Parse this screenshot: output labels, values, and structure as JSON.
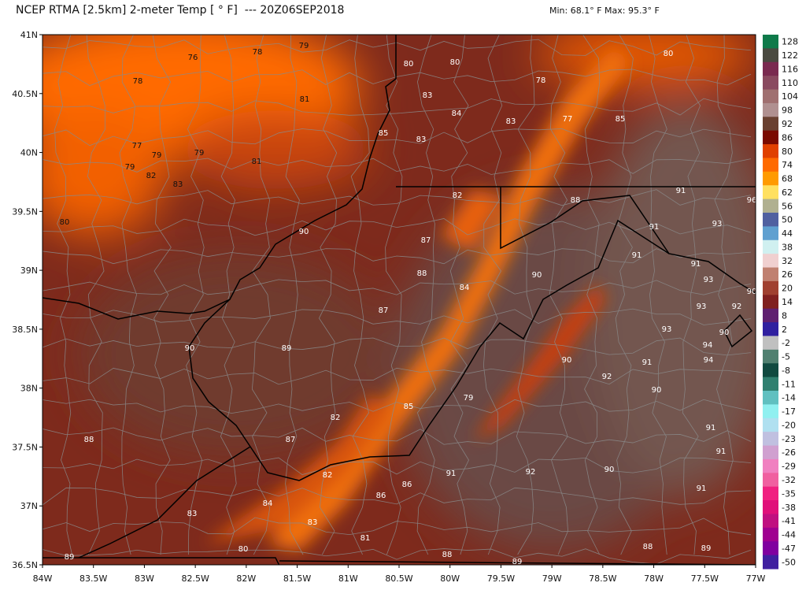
{
  "header": {
    "title": "NCEP RTMA [2.5km] 2-meter Temp [ ° F]  --- 20Z06SEP2018",
    "minmax": "Min: 68.1° F Max: 95.3° F"
  },
  "axes": {
    "lat_labels": [
      "41N",
      "40.5N",
      "40N",
      "39.5N",
      "39N",
      "38.5N",
      "38N",
      "37.5N",
      "37N",
      "36.5N"
    ],
    "lon_labels": [
      "84W",
      "83.5W",
      "83W",
      "82.5W",
      "82W",
      "81.5W",
      "81W",
      "80.5W",
      "80W",
      "79.5W",
      "79W",
      "78.5W",
      "78W",
      "77.5W",
      "77W"
    ]
  },
  "colorbar": {
    "labels": [
      "128",
      "122",
      "116",
      "110",
      "104",
      "98",
      "92",
      "86",
      "80",
      "74",
      "68",
      "62",
      "56",
      "50",
      "44",
      "38",
      "32",
      "26",
      "20",
      "14",
      "8",
      "2",
      "-2",
      "-5",
      "-8",
      "-11",
      "-14",
      "-17",
      "-20",
      "-23",
      "-26",
      "-29",
      "-32",
      "-35",
      "-38",
      "-41",
      "-44",
      "-47",
      "-50"
    ],
    "colors": [
      "#0f7a4a",
      "#4a4a40",
      "#7a2a50",
      "#8a4a60",
      "#a07070",
      "#b09090",
      "#6a4030",
      "#7a0a00",
      "#e04000",
      "#ff6a00",
      "#ff9a00",
      "#ffe060",
      "#b0b090",
      "#5060a0",
      "#60a0d0",
      "#d0f0f0",
      "#f0d0d0",
      "#c08070",
      "#a04030",
      "#802020",
      "#602070",
      "#3020a0",
      "#c0c0c0",
      "#508070",
      "#104a40",
      "#308070",
      "#60c0c0",
      "#90f0f0",
      "#b0e0f0",
      "#c0c0e0",
      "#d0a0d0",
      "#f080c0",
      "#f060a0",
      "#f02080",
      "#e0107a",
      "#c01080",
      "#a00090",
      "#8000a0",
      "#4020a0"
    ]
  },
  "temperature_labels": [
    "76",
    "78",
    "79",
    "78",
    "81",
    "85",
    "77",
    "79",
    "79",
    "81",
    "79",
    "82",
    "83",
    "80",
    "80",
    "80",
    "78",
    "80",
    "83",
    "84",
    "83",
    "77",
    "85",
    "83",
    "82",
    "88",
    "91",
    "96",
    "90",
    "87",
    "91",
    "93",
    "91",
    "91",
    "88",
    "90",
    "93",
    "84",
    "90",
    "93",
    "92",
    "87",
    "93",
    "90",
    "90",
    "89",
    "94",
    "90",
    "91",
    "94",
    "92",
    "90",
    "79",
    "85",
    "82",
    "91",
    "87",
    "88",
    "91",
    "82",
    "91",
    "92",
    "90",
    "86",
    "86",
    "91",
    "84",
    "83",
    "83",
    "81",
    "80",
    "88",
    "89",
    "88",
    "89",
    "89"
  ]
}
